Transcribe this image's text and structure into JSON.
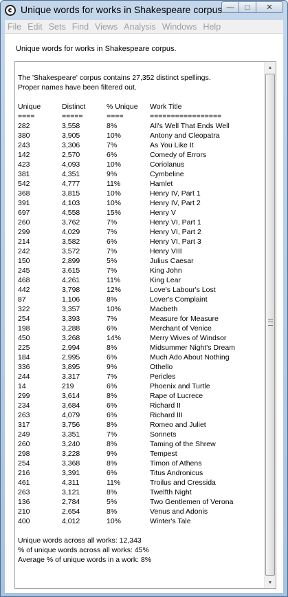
{
  "window": {
    "title": "Unique words for works in Shakespeare corpus."
  },
  "caption": {
    "minimize": "—",
    "maximize": "□",
    "close": "✕"
  },
  "menu": [
    "File",
    "Edit",
    "Sets",
    "Find",
    "Views",
    "Analysis",
    "Windows",
    "Help"
  ],
  "heading": "Unique words for works in Shakespeare corpus.",
  "intro": [
    "The 'Shakespeare' corpus contains 27,352 distinct spellings.",
    "Proper names have been filtered out."
  ],
  "table": {
    "headers": [
      "Unique",
      "Distinct",
      "% Unique",
      "Work Title"
    ],
    "underlines": [
      "====",
      "=====",
      "====",
      "================="
    ],
    "rows": [
      [
        "282",
        "3,558",
        "8%",
        "All's Well That Ends Well"
      ],
      [
        "380",
        "3,905",
        "10%",
        "Antony and Cleopatra"
      ],
      [
        "243",
        "3,306",
        "7%",
        "As You Like It"
      ],
      [
        "142",
        "2,570",
        "6%",
        "Comedy of Errors"
      ],
      [
        "423",
        "4,093",
        "10%",
        "Coriolanus"
      ],
      [
        "381",
        "4,351",
        "9%",
        "Cymbeline"
      ],
      [
        "542",
        "4,777",
        "11%",
        "Hamlet"
      ],
      [
        "368",
        "3,815",
        "10%",
        "Henry IV, Part 1"
      ],
      [
        "391",
        "4,103",
        "10%",
        "Henry IV, Part 2"
      ],
      [
        "697",
        "4,558",
        "15%",
        "Henry V"
      ],
      [
        "260",
        "3,762",
        "7%",
        "Henry VI, Part 1"
      ],
      [
        "299",
        "4,029",
        "7%",
        "Henry VI, Part 2"
      ],
      [
        "214",
        "3,582",
        "6%",
        "Henry VI, Part 3"
      ],
      [
        "242",
        "3,572",
        "7%",
        "Henry VIII"
      ],
      [
        "150",
        "2,899",
        "5%",
        "Julius Caesar"
      ],
      [
        "245",
        "3,615",
        "7%",
        "King John"
      ],
      [
        "468",
        "4,261",
        "11%",
        "King Lear"
      ],
      [
        "442",
        "3,798",
        "12%",
        "Love's Labour's Lost"
      ],
      [
        "87",
        "1,106",
        "8%",
        "Lover's Complaint"
      ],
      [
        "322",
        "3,357",
        "10%",
        "Macbeth"
      ],
      [
        "254",
        "3,393",
        "7%",
        "Measure for Measure"
      ],
      [
        "198",
        "3,288",
        "6%",
        "Merchant of Venice"
      ],
      [
        "450",
        "3,268",
        "14%",
        "Merry Wives of Windsor"
      ],
      [
        "225",
        "2,994",
        "8%",
        "Midsummer Night's Dream"
      ],
      [
        "184",
        "2,995",
        "6%",
        "Much Ado About Nothing"
      ],
      [
        "336",
        "3,895",
        "9%",
        "Othello"
      ],
      [
        "244",
        "3,317",
        "7%",
        "Pericles"
      ],
      [
        "14",
        "219",
        "6%",
        "Phoenix and Turtle"
      ],
      [
        "299",
        "3,614",
        "8%",
        "Rape of Lucrece"
      ],
      [
        "234",
        "3,684",
        "6%",
        "Richard II"
      ],
      [
        "263",
        "4,079",
        "6%",
        "Richard III"
      ],
      [
        "317",
        "3,756",
        "8%",
        "Romeo and Juliet"
      ],
      [
        "249",
        "3,351",
        "7%",
        "Sonnets"
      ],
      [
        "260",
        "3,240",
        "8%",
        "Taming of the Shrew"
      ],
      [
        "298",
        "3,228",
        "9%",
        "Tempest"
      ],
      [
        "254",
        "3,368",
        "8%",
        "Timon of Athens"
      ],
      [
        "216",
        "3,391",
        "6%",
        "Titus Andronicus"
      ],
      [
        "461",
        "4,311",
        "11%",
        "Troilus and Cressida"
      ],
      [
        "263",
        "3,121",
        "8%",
        "Twelfth Night"
      ],
      [
        "136",
        "2,784",
        "5%",
        "Two Gentlemen of Verona"
      ],
      [
        "210",
        "2,654",
        "8%",
        "Venus and Adonis"
      ],
      [
        "400",
        "4,012",
        "10%",
        "Winter's Tale"
      ]
    ]
  },
  "summary": [
    "Unique words across all works: 12,343",
    "% of unique words across all works: 45%",
    "Average % of unique words in a work: 8%"
  ],
  "icons": {
    "app": "app-icon",
    "scroll_up": "scroll-up-arrow-icon",
    "scroll_down": "scroll-down-arrow-icon",
    "grip": "scroll-grip-icon"
  },
  "colors": {
    "titlebar": "#b9cde5",
    "menu_disabled_text": "#a0a0a0"
  }
}
